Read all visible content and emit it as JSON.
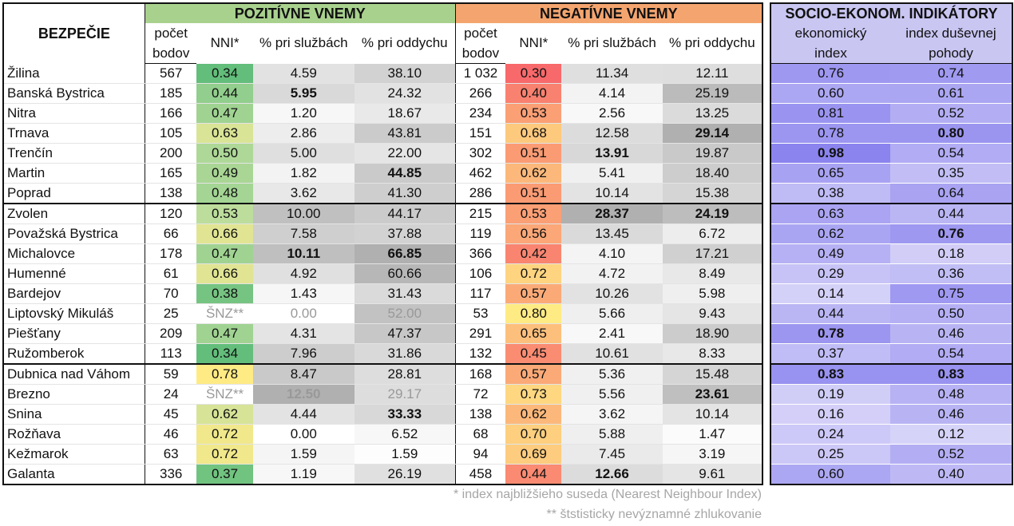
{
  "title": "BEZPEČIE",
  "groups": {
    "positive": "POZITÍVNE VNEMY",
    "negative": "NEGATÍVNE VNEMY",
    "socio": "SOCIO-EKONOM. INDIKÁTORY"
  },
  "columns": {
    "count_top": "počet",
    "count_bottom": "bodov",
    "nni": "NNI*",
    "services": "% pri službách",
    "leisure": "% pri oddychu",
    "econ_top": "ekonomický",
    "econ_bottom": "index",
    "wellbeing_top": "index duševnej",
    "wellbeing_bottom": "pohody"
  },
  "rows": [
    {
      "city": "Žilina",
      "pc": "567",
      "pn": "0.34",
      "ps": "4.59",
      "pl": "38.10",
      "nc": "1 032",
      "nn": "0.30",
      "ns": "11.34",
      "nl": "12.11",
      "ec": "0.76",
      "wb": "0.74"
    },
    {
      "city": "Banská Bystrica",
      "pc": "185",
      "pn": "0.44",
      "ps": "5.95",
      "pl": "24.32",
      "nc": "266",
      "nn": "0.40",
      "ns": "4.14",
      "nl": "25.19",
      "ec": "0.60",
      "wb": "0.61"
    },
    {
      "city": "Nitra",
      "pc": "166",
      "pn": "0.47",
      "ps": "1.20",
      "pl": "18.67",
      "nc": "234",
      "nn": "0.53",
      "ns": "2.56",
      "nl": "13.25",
      "ec": "0.81",
      "wb": "0.52"
    },
    {
      "city": "Trnava",
      "pc": "105",
      "pn": "0.63",
      "ps": "2.86",
      "pl": "43.81",
      "nc": "151",
      "nn": "0.68",
      "ns": "12.58",
      "nl": "29.14",
      "ec": "0.78",
      "wb": "0.80"
    },
    {
      "city": "Trenčín",
      "pc": "200",
      "pn": "0.50",
      "ps": "5.00",
      "pl": "22.00",
      "nc": "302",
      "nn": "0.51",
      "ns": "13.91",
      "nl": "19.87",
      "ec": "0.98",
      "wb": "0.54"
    },
    {
      "city": "Martin",
      "pc": "165",
      "pn": "0.49",
      "ps": "1.82",
      "pl": "44.85",
      "nc": "462",
      "nn": "0.62",
      "ns": "5.41",
      "nl": "18.40",
      "ec": "0.65",
      "wb": "0.35"
    },
    {
      "city": "Poprad",
      "pc": "138",
      "pn": "0.48",
      "ps": "3.62",
      "pl": "41.30",
      "nc": "286",
      "nn": "0.51",
      "ns": "10.14",
      "nl": "15.38",
      "ec": "0.38",
      "wb": "0.64"
    },
    {
      "city": "Zvolen",
      "pc": "120",
      "pn": "0.53",
      "ps": "10.00",
      "pl": "44.17",
      "nc": "215",
      "nn": "0.53",
      "ns": "28.37",
      "nl": "24.19",
      "ec": "0.63",
      "wb": "0.44"
    },
    {
      "city": "Považská Bystrica",
      "pc": "66",
      "pn": "0.66",
      "ps": "7.58",
      "pl": "37.88",
      "nc": "119",
      "nn": "0.56",
      "ns": "13.45",
      "nl": "6.72",
      "ec": "0.62",
      "wb": "0.76"
    },
    {
      "city": "Michalovce",
      "pc": "178",
      "pn": "0.47",
      "ps": "10.11",
      "pl": "66.85",
      "nc": "366",
      "nn": "0.42",
      "ns": "4.10",
      "nl": "17.21",
      "ec": "0.49",
      "wb": "0.18"
    },
    {
      "city": "Humenné",
      "pc": "61",
      "pn": "0.66",
      "ps": "4.92",
      "pl": "60.66",
      "nc": "106",
      "nn": "0.72",
      "ns": "4.72",
      "nl": "8.49",
      "ec": "0.29",
      "wb": "0.36"
    },
    {
      "city": "Bardejov",
      "pc": "70",
      "pn": "0.38",
      "ps": "1.43",
      "pl": "31.43",
      "nc": "117",
      "nn": "0.57",
      "ns": "10.26",
      "nl": "5.98",
      "ec": "0.14",
      "wb": "0.75"
    },
    {
      "city": "Liptovský Mikuláš",
      "pc": "25",
      "pn": "ŠNZ**",
      "ps": "0.00",
      "pl": "52.00",
      "nc": "53",
      "nn": "0.80",
      "ns": "5.66",
      "nl": "9.43",
      "ec": "0.44",
      "wb": "0.50"
    },
    {
      "city": "Piešťany",
      "pc": "209",
      "pn": "0.47",
      "ps": "4.31",
      "pl": "47.37",
      "nc": "291",
      "nn": "0.65",
      "ns": "2.41",
      "nl": "18.90",
      "ec": "0.78",
      "wb": "0.46"
    },
    {
      "city": "Ružomberok",
      "pc": "113",
      "pn": "0.34",
      "ps": "7.96",
      "pl": "31.86",
      "nc": "132",
      "nn": "0.45",
      "ns": "10.61",
      "nl": "8.33",
      "ec": "0.37",
      "wb": "0.54"
    },
    {
      "city": "Dubnica nad Váhom",
      "pc": "59",
      "pn": "0.78",
      "ps": "8.47",
      "pl": "28.81",
      "nc": "168",
      "nn": "0.57",
      "ns": "5.36",
      "nl": "15.48",
      "ec": "0.83",
      "wb": "0.83"
    },
    {
      "city": "Brezno",
      "pc": "24",
      "pn": "ŠNZ**",
      "ps": "12.50",
      "pl": "29.17",
      "nc": "72",
      "nn": "0.73",
      "ns": "5.56",
      "nl": "23.61",
      "ec": "0.19",
      "wb": "0.48"
    },
    {
      "city": "Snina",
      "pc": "45",
      "pn": "0.62",
      "ps": "4.44",
      "pl": "33.33",
      "nc": "138",
      "nn": "0.62",
      "ns": "3.62",
      "nl": "10.14",
      "ec": "0.16",
      "wb": "0.46"
    },
    {
      "city": "Rožňava",
      "pc": "46",
      "pn": "0.72",
      "ps": "0.00",
      "pl": "6.52",
      "nc": "68",
      "nn": "0.70",
      "ns": "5.88",
      "nl": "1.47",
      "ec": "0.24",
      "wb": "0.12"
    },
    {
      "city": "Kežmarok",
      "pc": "63",
      "pn": "0.72",
      "ps": "1.59",
      "pl": "1.59",
      "nc": "94",
      "nn": "0.69",
      "ns": "7.45",
      "nl": "3.19",
      "ec": "0.25",
      "wb": "0.52"
    },
    {
      "city": "Galanta",
      "pc": "336",
      "pn": "0.37",
      "ps": "1.19",
      "pl": "26.19",
      "nc": "458",
      "nn": "0.44",
      "ns": "12.66",
      "nl": "9.61",
      "ec": "0.60",
      "wb": "0.40"
    }
  ],
  "footnotes": {
    "nni": "* index najbližšieho suseda (Nearest Neighbour Index)",
    "snz": "** štstisticky nevýznamné zhlukovanie"
  }
}
